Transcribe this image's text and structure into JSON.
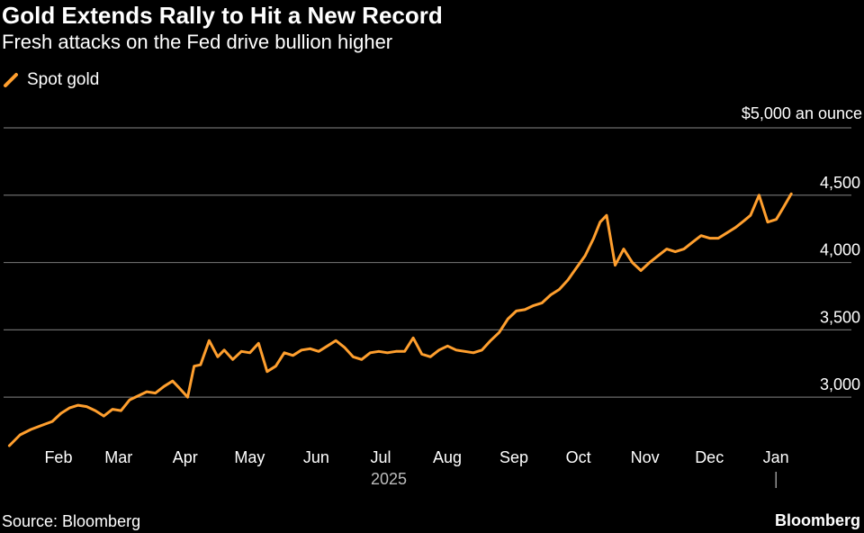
{
  "header": {
    "title": "Gold Extends Rally to Hit a New Record",
    "subtitle": "Fresh attacks on the Fed drive bullion higher"
  },
  "footer": {
    "source": "Source: Bloomberg",
    "brand": "Bloomberg"
  },
  "colors": {
    "background": "#000000",
    "series": "#ff9f2e",
    "grid": "#6b6b6b"
  },
  "chart_data": {
    "type": "line",
    "title": "Gold Extends Rally to Hit a New Record",
    "subtitle": "Fresh attacks on the Fed drive bullion higher",
    "y_unit_label": "$5,000 an ounce",
    "ylim": [
      2700,
      5000
    ],
    "y_ticks": [
      3000,
      3500,
      4000,
      4500,
      5000
    ],
    "y_tick_labels": [
      "3,000",
      "3,500",
      "4,000",
      "4,500",
      "$5,000 an ounce"
    ],
    "x_tick_labels": [
      "Feb",
      "Mar",
      "Apr",
      "May",
      "Jun",
      "Jul",
      "Aug",
      "Sep",
      "Oct",
      "Nov",
      "Dec",
      "Jan"
    ],
    "x_year_label": "2025",
    "grid": true,
    "legend_position": "top-left",
    "series": [
      {
        "name": "Spot gold",
        "color": "#ff9f2e",
        "x": [
          "2025-01-15",
          "2025-01-20",
          "2025-01-25",
          "2025-01-30",
          "2025-02-04",
          "2025-02-08",
          "2025-02-12",
          "2025-02-16",
          "2025-02-20",
          "2025-02-24",
          "2025-02-28",
          "2025-03-04",
          "2025-03-08",
          "2025-03-12",
          "2025-03-16",
          "2025-03-20",
          "2025-03-24",
          "2025-03-28",
          "2025-04-01",
          "2025-04-04",
          "2025-04-08",
          "2025-04-11",
          "2025-04-14",
          "2025-04-18",
          "2025-04-22",
          "2025-04-25",
          "2025-04-29",
          "2025-05-03",
          "2025-05-07",
          "2025-05-11",
          "2025-05-15",
          "2025-05-19",
          "2025-05-23",
          "2025-05-27",
          "2025-05-31",
          "2025-06-04",
          "2025-06-08",
          "2025-06-12",
          "2025-06-16",
          "2025-06-20",
          "2025-06-24",
          "2025-06-28",
          "2025-07-02",
          "2025-07-06",
          "2025-07-10",
          "2025-07-14",
          "2025-07-18",
          "2025-07-22",
          "2025-07-26",
          "2025-07-30",
          "2025-08-03",
          "2025-08-07",
          "2025-08-11",
          "2025-08-15",
          "2025-08-19",
          "2025-08-23",
          "2025-08-27",
          "2025-08-31",
          "2025-09-04",
          "2025-09-08",
          "2025-09-12",
          "2025-09-16",
          "2025-09-20",
          "2025-09-24",
          "2025-09-28",
          "2025-10-02",
          "2025-10-06",
          "2025-10-10",
          "2025-10-14",
          "2025-10-17",
          "2025-10-20",
          "2025-10-24",
          "2025-10-28",
          "2025-11-01",
          "2025-11-05",
          "2025-11-09",
          "2025-11-13",
          "2025-11-17",
          "2025-11-21",
          "2025-11-25",
          "2025-11-29",
          "2025-12-03",
          "2025-12-07",
          "2025-12-11",
          "2025-12-15",
          "2025-12-19",
          "2025-12-23",
          "2025-12-26",
          "2025-12-30",
          "2026-01-03",
          "2026-01-07",
          "2026-01-10",
          "2026-01-14"
        ],
        "values": [
          2640,
          2720,
          2760,
          2790,
          2820,
          2880,
          2920,
          2940,
          2930,
          2900,
          2860,
          2910,
          2900,
          2980,
          3010,
          3040,
          3030,
          3080,
          3120,
          3070,
          3000,
          3230,
          3240,
          3420,
          3300,
          3350,
          3280,
          3340,
          3330,
          3400,
          3190,
          3230,
          3330,
          3310,
          3350,
          3360,
          3340,
          3380,
          3420,
          3370,
          3300,
          3280,
          3330,
          3340,
          3330,
          3340,
          3340,
          3440,
          3320,
          3300,
          3350,
          3380,
          3350,
          3340,
          3330,
          3350,
          3420,
          3480,
          3580,
          3640,
          3650,
          3680,
          3700,
          3760,
          3800,
          3870,
          3960,
          4050,
          4180,
          4300,
          4350,
          3980,
          4100,
          4000,
          3940,
          4000,
          4050,
          4100,
          4080,
          4100,
          4150,
          4200,
          4180,
          4180,
          4220,
          4260,
          4310,
          4350,
          4500,
          4300,
          4320,
          4400,
          4510
        ]
      }
    ]
  }
}
